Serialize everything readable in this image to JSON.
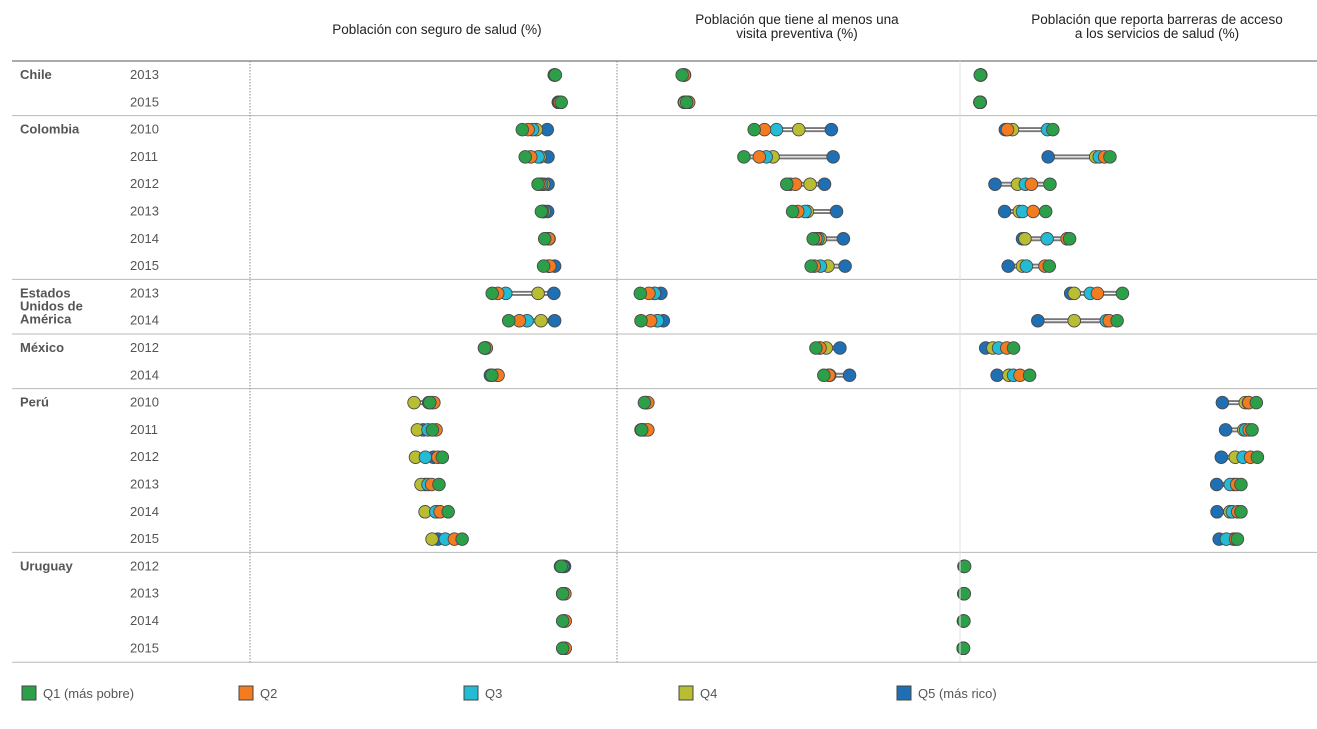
{
  "chart_data": {
    "type": "dot-range",
    "panels": [
      {
        "title_lines": [
          "Población con seguro de salud (%)"
        ]
      },
      {
        "title_lines": [
          "Población que tiene al menos una",
          "visita preventiva (%)"
        ]
      },
      {
        "title_lines": [
          "Población que reporta barreras de acceso",
          "a los servicios de salud (%)"
        ]
      }
    ],
    "quintiles": [
      {
        "name": "Q1 (más pobre)",
        "color": "#2ca048"
      },
      {
        "name": "Q2",
        "color": "#f37b20"
      },
      {
        "name": "Q3",
        "color": "#24bcd4"
      },
      {
        "name": "Q4",
        "color": "#b9bd32"
      },
      {
        "name": "Q5 (más rico)",
        "color": "#1f6fb4"
      }
    ],
    "countries": [
      {
        "name_lines": [
          "Chile"
        ],
        "rows": [
          {
            "year": "2013",
            "panels": [
              [
                0.832,
                0.831,
                0.83,
                0.83,
                0.829
              ],
              [
                0.19,
                0.196,
                0.197,
                0.195,
                0.193
              ],
              [
                0.057,
                0.058,
                0.058,
                0.057,
                0.058
              ]
            ]
          },
          {
            "year": "2015",
            "panels": [
              [
                0.848,
                0.844,
                0.842,
                0.841,
                0.84
              ],
              [
                0.203,
                0.209,
                0.206,
                0.198,
                0.196
              ],
              [
                0.056,
                0.057,
                0.056,
                0.056,
                0.056
              ]
            ]
          }
        ]
      },
      {
        "name_lines": [
          "Colombia"
        ],
        "rows": [
          {
            "year": "2010",
            "panels": [
              [
                0.742,
                0.758,
                0.77,
                0.78,
                0.81
              ],
              [
                0.4,
                0.43,
                0.465,
                0.53,
                0.625
              ],
              [
                0.26,
                0.133,
                0.245,
                0.147,
                0.127
              ]
            ]
          },
          {
            "year": "2011",
            "panels": [
              [
                0.75,
                0.765,
                0.785,
                0.79,
                0.812
              ],
              [
                0.37,
                0.415,
                0.435,
                0.455,
                0.63
              ],
              [
                0.42,
                0.405,
                0.39,
                0.38,
                0.247
              ]
            ]
          },
          {
            "year": "2012",
            "panels": [
              [
                0.785,
                0.79,
                0.795,
                0.8,
                0.812
              ],
              [
                0.495,
                0.52,
                0.505,
                0.563,
                0.605
              ],
              [
                0.252,
                0.2,
                0.183,
                0.161,
                0.098
              ]
            ]
          },
          {
            "year": "2013",
            "panels": [
              [
                0.794,
                0.797,
                0.802,
                0.8,
                0.811
              ],
              [
                0.512,
                0.527,
                0.548,
                0.555,
                0.64
              ],
              [
                0.24,
                0.205,
                0.175,
                0.166,
                0.125
              ]
            ]
          },
          {
            "year": "2014",
            "panels": [
              [
                0.803,
                0.814,
                0.815,
                0.813,
                0.811
              ],
              [
                0.572,
                0.58,
                0.586,
                0.593,
                0.66
              ],
              [
                0.307,
                0.3,
                0.244,
                0.182,
                0.175
              ]
            ]
          },
          {
            "year": "2015",
            "panels": [
              [
                0.8,
                0.817,
                0.815,
                0.813,
                0.83
              ],
              [
                0.566,
                0.575,
                0.593,
                0.615,
                0.665
              ],
              [
                0.25,
                0.238,
                0.186,
                0.175,
                0.135
              ]
            ]
          }
        ]
      },
      {
        "name_lines": [
          "Estados",
          "Unidos de",
          "América"
        ],
        "rows": [
          {
            "year": "2013",
            "panels": [
              [
                0.66,
                0.675,
                0.697,
                0.785,
                0.828
              ],
              [
                0.068,
                0.093,
                0.109,
                0.11,
                0.128
              ],
              [
                0.455,
                0.385,
                0.365,
                0.32,
                0.31
              ]
            ]
          },
          {
            "year": "2014",
            "panels": [
              [
                0.705,
                0.734,
                0.755,
                0.793,
                0.83
              ],
              [
                0.07,
                0.098,
                0.118,
                0.118,
                0.135
              ],
              [
                0.44,
                0.418,
                0.41,
                0.32,
                0.218
              ]
            ]
          }
        ]
      },
      {
        "name_lines": [
          "México"
        ],
        "rows": [
          {
            "year": "2012",
            "panels": [
              [
                0.639,
                0.644,
                0.642,
                0.641,
                0.639
              ],
              [
                0.58,
                0.592,
                0.59,
                0.61,
                0.65
              ],
              [
                0.15,
                0.131,
                0.108,
                0.092,
                0.072
              ]
            ]
          },
          {
            "year": "2014",
            "panels": [
              [
                0.659,
                0.676,
                0.673,
                0.66,
                0.655
              ],
              [
                0.603,
                0.618,
                0.62,
                0.617,
                0.678
              ],
              [
                0.195,
                0.168,
                0.15,
                0.137,
                0.104
              ]
            ]
          }
        ]
      },
      {
        "name_lines": [
          "Perú"
        ],
        "rows": [
          {
            "year": "2010",
            "panels": [
              [
                0.49,
                0.501,
                0.496,
                0.447,
                0.487
              ],
              [
                0.08,
                0.09,
                0.086,
                0.083,
                0.082
              ],
              [
                0.83,
                0.809,
                0.808,
                0.799,
                0.735
              ]
            ]
          },
          {
            "year": "2011",
            "panels": [
              [
                0.497,
                0.507,
                0.485,
                0.456,
                0.472
              ],
              [
                0.072,
                0.09,
                0.08,
                0.075,
                0.07
              ],
              [
                0.818,
                0.81,
                0.8,
                0.795,
                0.744
              ]
            ]
          },
          {
            "year": "2012",
            "panels": [
              [
                0.524,
                0.512,
                0.478,
                0.451,
                0.5
              ],
              [
                null,
                null,
                null,
                null,
                null
              ],
              [
                0.833,
                0.814,
                0.793,
                0.771,
                0.732
              ]
            ]
          },
          {
            "year": "2013",
            "panels": [
              [
                0.515,
                0.495,
                0.485,
                0.466,
                0.477
              ],
              [
                null,
                null,
                null,
                null,
                null
              ],
              [
                0.787,
                0.775,
                0.757,
                0.767,
                0.719
              ]
            ]
          },
          {
            "year": "2014",
            "panels": [
              [
                0.54,
                0.518,
                0.506,
                0.477,
                0.509
              ],
              [
                null,
                null,
                null,
                null,
                null
              ],
              [
                0.787,
                0.778,
                0.763,
                0.756,
                0.72
              ]
            ]
          },
          {
            "year": "2015",
            "panels": [
              [
                0.578,
                0.557,
                0.532,
                0.496,
                0.512
              ],
              [
                null,
                null,
                null,
                null,
                null
              ],
              [
                0.777,
                0.772,
                0.746,
                0.766,
                0.726
              ]
            ]
          }
        ]
      },
      {
        "name_lines": [
          "Uruguay"
        ],
        "rows": [
          {
            "year": "2012",
            "panels": [
              [
                0.848,
                0.846,
                0.852,
                0.854,
                0.857
              ],
              [
                null,
                null,
                null,
                null,
                null
              ],
              [
                0.013,
                0.012,
                0.012,
                0.012,
                0.011
              ]
            ]
          },
          {
            "year": "2013",
            "panels": [
              [
                0.852,
                0.858,
                0.855,
                0.853,
                0.852
              ],
              [
                null,
                null,
                null,
                null,
                null
              ],
              [
                0.012,
                0.011,
                0.011,
                0.011,
                0.011
              ]
            ]
          },
          {
            "year": "2014",
            "panels": [
              [
                0.852,
                0.859,
                0.856,
                0.854,
                0.853
              ],
              [
                null,
                null,
                null,
                null,
                null
              ],
              [
                0.011,
                0.01,
                0.01,
                0.01,
                0.01
              ]
            ]
          },
          {
            "year": "2015",
            "panels": [
              [
                0.852,
                0.859,
                0.856,
                0.854,
                0.853
              ],
              [
                null,
                null,
                null,
                null,
                null
              ],
              [
                0.01,
                0.009,
                0.009,
                0.009,
                0.009
              ]
            ]
          }
        ]
      }
    ]
  }
}
